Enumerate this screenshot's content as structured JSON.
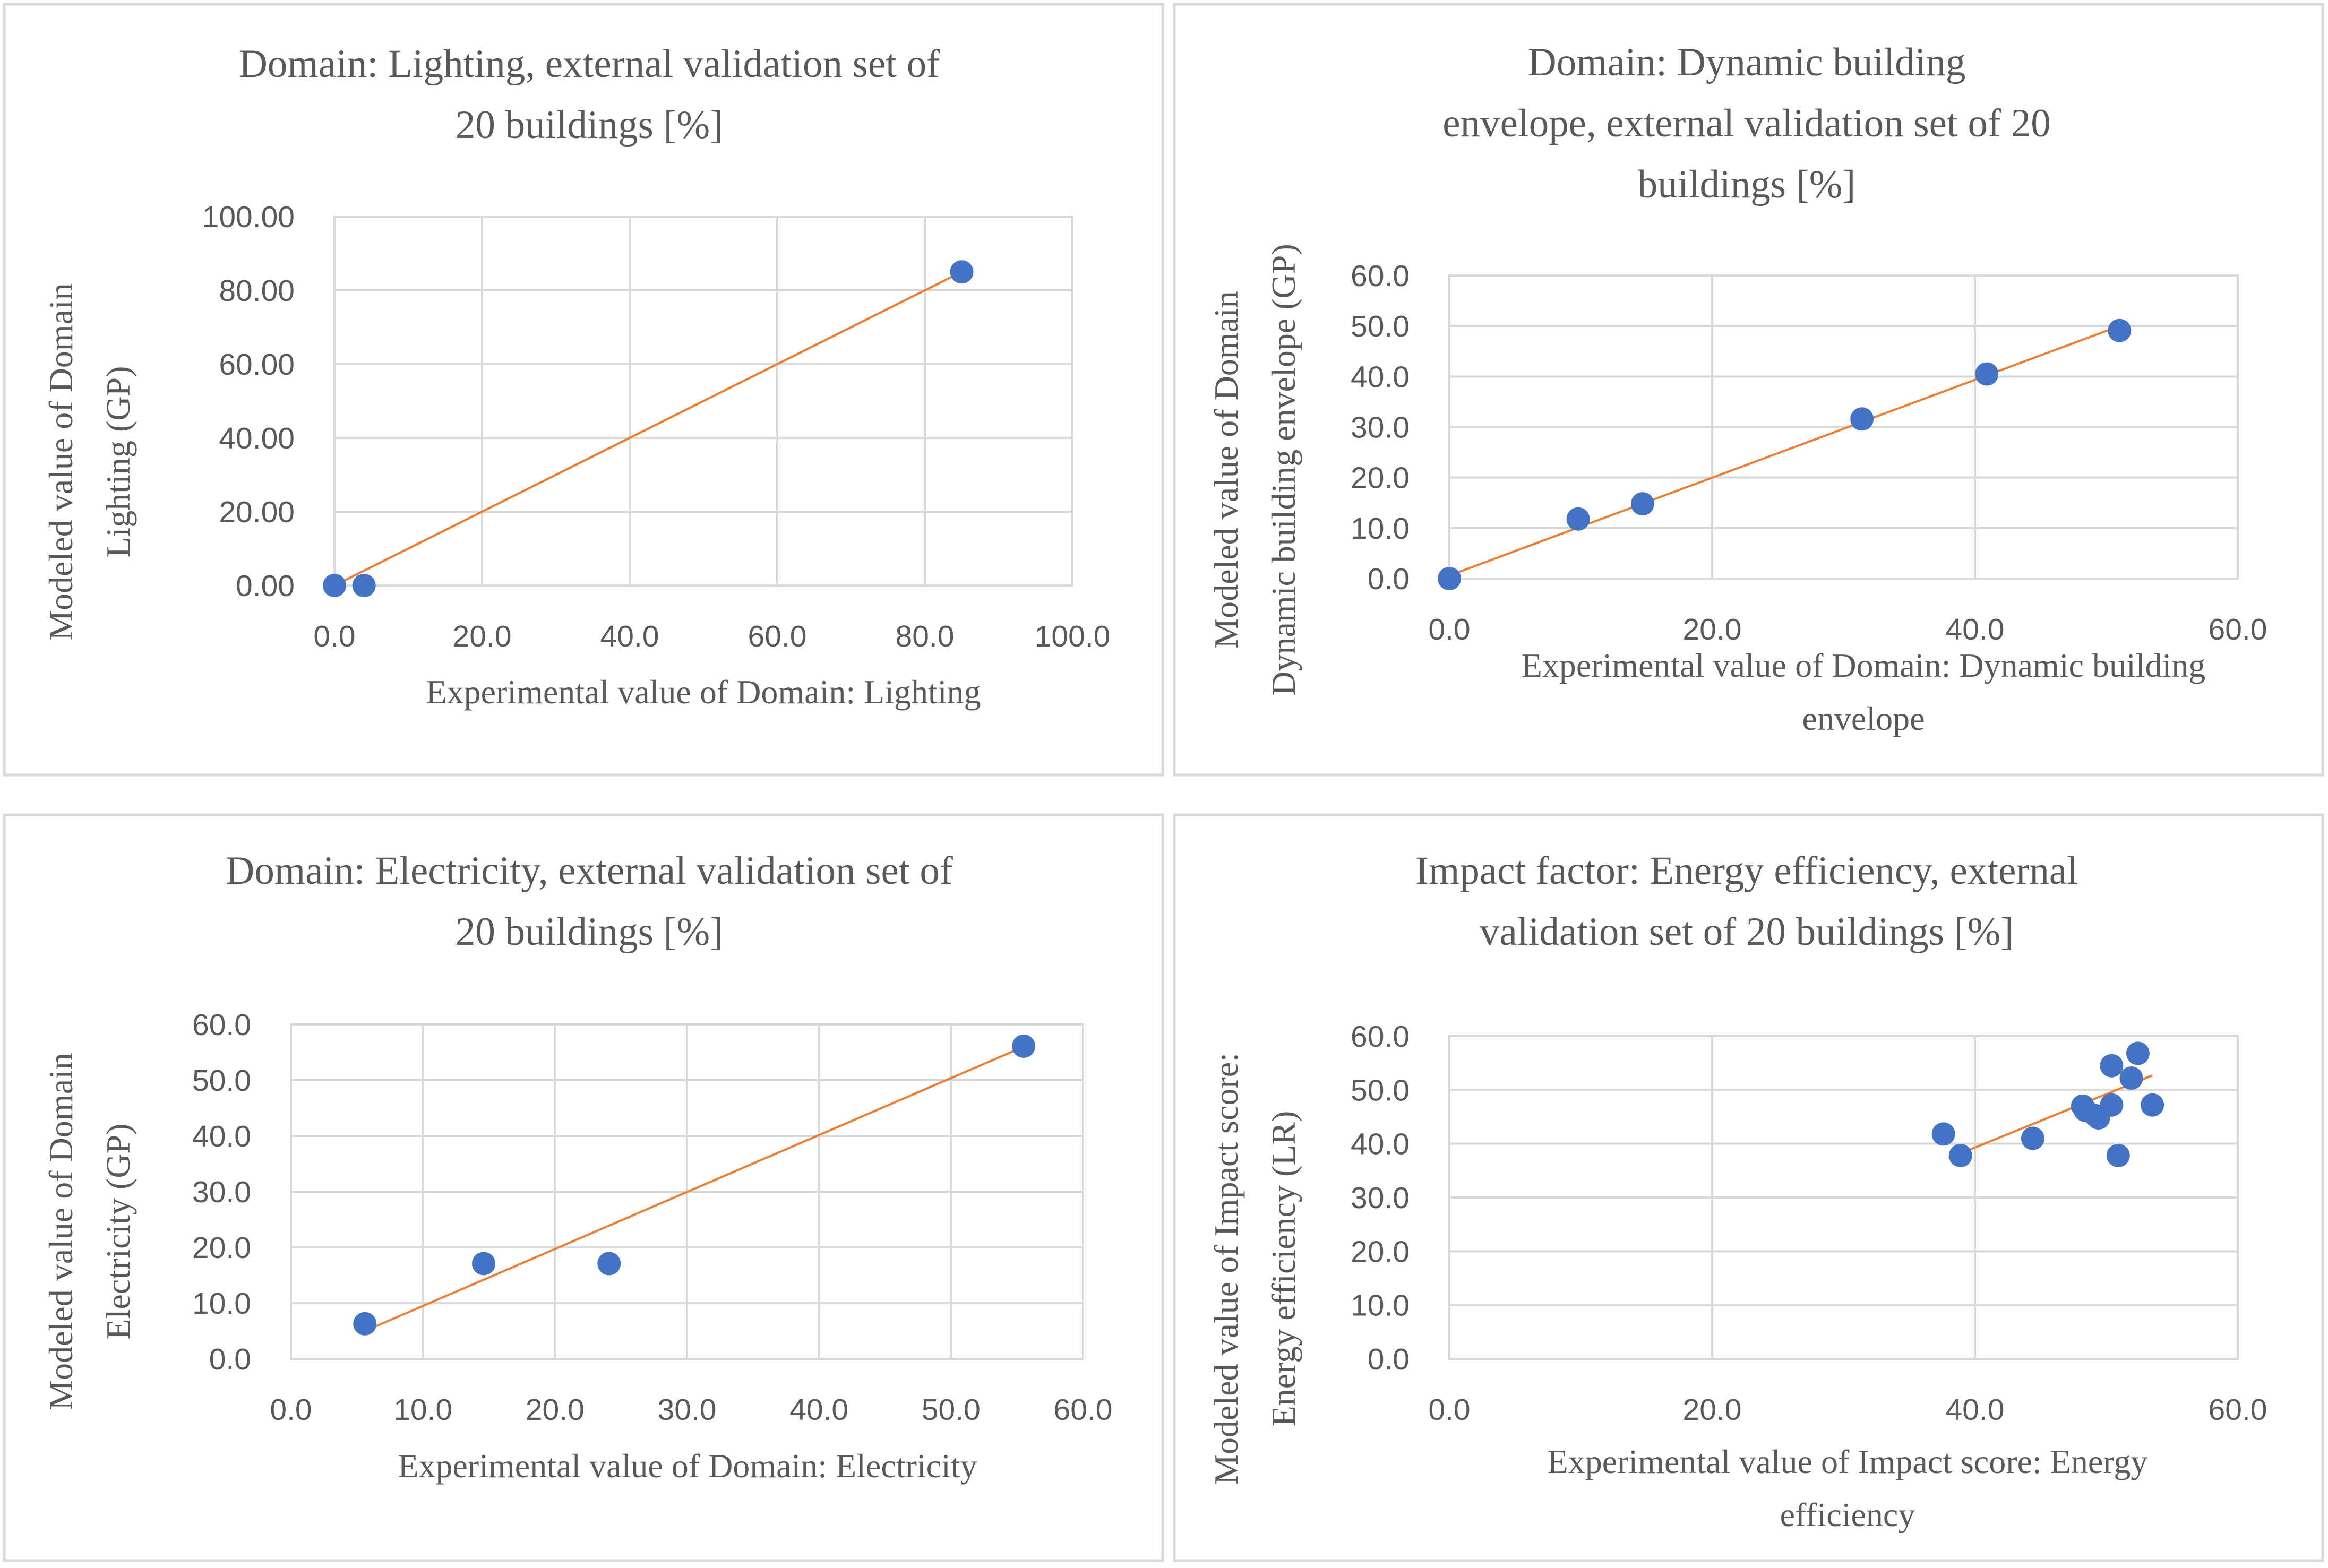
{
  "chart_data": [
    {
      "type": "scatter",
      "title_lines": [
        "Domain: Lighting, external validation set of",
        "20 buildings [%]"
      ],
      "xlabel_lines": [
        "Experimental value of Domain: Lighting"
      ],
      "ylabel_lines": [
        "Modeled value of Domain",
        "Lighting (GP)"
      ],
      "xlim": [
        0,
        100
      ],
      "ylim": [
        0,
        100
      ],
      "xticks": [
        "0.0",
        "20.0",
        "40.0",
        "60.0",
        "80.0",
        "100.0"
      ],
      "yticks": [
        "0.00",
        "20.00",
        "40.00",
        "60.00",
        "80.00",
        "100.00"
      ],
      "x": [
        0,
        4,
        85
      ],
      "y": [
        0,
        0,
        85
      ],
      "trendline": {
        "x": [
          0,
          85
        ],
        "y": [
          0,
          85
        ]
      },
      "grid": true
    },
    {
      "type": "scatter",
      "title_lines": [
        "Domain: Dynamic building",
        "envelope, external validation set of 20",
        "buildings [%]"
      ],
      "xlabel_lines": [
        "Experimental value of Domain: Dynamic building",
        "envelope"
      ],
      "ylabel_lines": [
        "Modeled value of Domain",
        "Dynamic building envelope (GP)"
      ],
      "xlim": [
        0,
        60
      ],
      "ylim": [
        0,
        60
      ],
      "xticks": [
        "0.0",
        "20.0",
        "40.0",
        "60.0"
      ],
      "yticks": [
        "0.0",
        "10.0",
        "20.0",
        "30.0",
        "40.0",
        "50.0",
        "60.0"
      ],
      "x": [
        0,
        9.8,
        14.7,
        31.4,
        40.9,
        51.0
      ],
      "y": [
        0,
        11.8,
        14.8,
        31.6,
        40.5,
        49.1
      ],
      "trendline": {
        "x": [
          0,
          51.0
        ],
        "y": [
          0.6,
          50.0
        ]
      },
      "grid": true
    },
    {
      "type": "scatter",
      "title_lines": [
        "Domain: Electricity, external validation set of",
        "20 buildings [%]"
      ],
      "xlabel_lines": [
        "Experimental value of Domain: Electricity"
      ],
      "ylabel_lines": [
        "Modeled value of Domain",
        "Electricity (GP)"
      ],
      "xlim": [
        0,
        60
      ],
      "ylim": [
        0,
        60
      ],
      "xticks": [
        "0.0",
        "10.0",
        "20.0",
        "30.0",
        "40.0",
        "50.0",
        "60.0"
      ],
      "yticks": [
        "0.0",
        "10.0",
        "20.0",
        "30.0",
        "40.0",
        "50.0",
        "60.0"
      ],
      "x": [
        5.6,
        14.6,
        24.1,
        55.5
      ],
      "y": [
        6.3,
        17.1,
        17.1,
        56.1
      ],
      "trendline": {
        "x": [
          5.6,
          55.5
        ],
        "y": [
          5.0,
          56.0
        ]
      },
      "grid": true
    },
    {
      "type": "scatter",
      "title_lines": [
        "Impact factor: Energy efficiency, external",
        "validation set of 20 buildings [%]"
      ],
      "xlabel_lines": [
        "Experimental value of Impact score: Energy",
        "efficiency"
      ],
      "ylabel_lines": [
        "Modeled value of Impact score:",
        "Energy efficiency (LR)"
      ],
      "xlim": [
        0,
        60
      ],
      "ylim": [
        0,
        60
      ],
      "xticks": [
        "0.0",
        "20.0",
        "40.0",
        "60.0"
      ],
      "yticks": [
        "0.0",
        "10.0",
        "20.0",
        "30.0",
        "40.0",
        "50.0",
        "60.0"
      ],
      "x": [
        37.6,
        38.9,
        44.4,
        48.2,
        48.4,
        49.2,
        49.4,
        50.4,
        50.4,
        50.9,
        51.9,
        52.4,
        53.5
      ],
      "y": [
        41.8,
        37.8,
        41.0,
        47.0,
        46.2,
        45.2,
        44.8,
        54.5,
        47.2,
        37.8,
        52.2,
        56.8,
        47.2
      ],
      "trendline": {
        "x": [
          38.0,
          53.5
        ],
        "y": [
          37.3,
          52.7
        ]
      },
      "grid": true
    }
  ],
  "colors": {
    "point": "#4472c4",
    "trendline": "#ed7d31",
    "grid": "#d9d9d9",
    "text": "#595959"
  }
}
